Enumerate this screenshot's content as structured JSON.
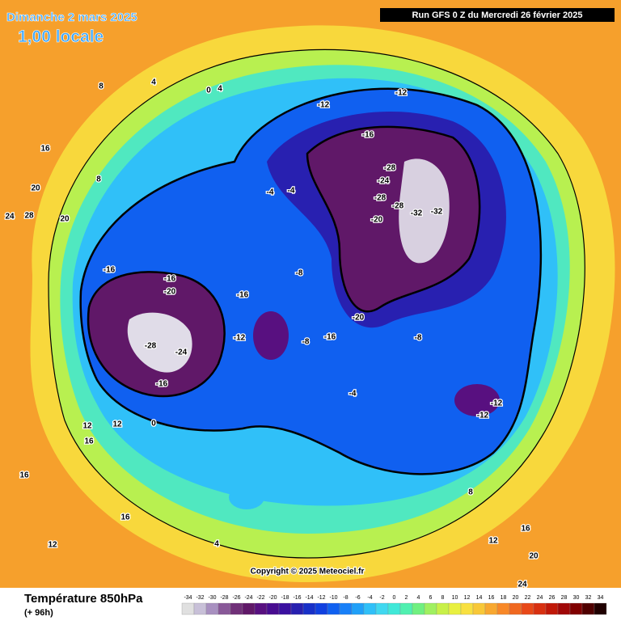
{
  "header": {
    "valid_date": "Dimanche 2 mars 2025",
    "local_time": "1,00 locale",
    "run_info": "Run GFS 0 Z du Mercredi 26 février 2025"
  },
  "map": {
    "copyright": "Copyright © 2025 Meteociel.fr",
    "contour_labels": [
      -32,
      -32,
      -28,
      -28,
      -24,
      -20,
      -28,
      -16,
      -12,
      -12,
      -16,
      -16,
      -20,
      -24,
      -28,
      -16,
      -12,
      -8,
      -20,
      -8,
      -8,
      -16,
      -16,
      -12,
      -12,
      -4,
      -4,
      0,
      4,
      4,
      8,
      8,
      12,
      16,
      16,
      20,
      24,
      28,
      20,
      16,
      12,
      12,
      16,
      20,
      24,
      16,
      12,
      8,
      4,
      0,
      -4
    ]
  },
  "footer": {
    "parameter": "Température 850hPa",
    "lead_time": "(+ 96h)"
  },
  "scale": {
    "values": [
      -34,
      -32,
      -30,
      -28,
      -26,
      -24,
      -22,
      -20,
      -18,
      -16,
      -14,
      -12,
      -10,
      -8,
      -6,
      -4,
      -2,
      0,
      2,
      4,
      6,
      8,
      10,
      12,
      14,
      16,
      18,
      20,
      22,
      24,
      26,
      28,
      30,
      32,
      34
    ],
    "colors": [
      "#e0e0e0",
      "#c8c0d8",
      "#a890c0",
      "#885898",
      "#703078",
      "#601868",
      "#581080",
      "#480c90",
      "#3a10a0",
      "#2820b0",
      "#1830c8",
      "#1040e0",
      "#1060f0",
      "#1880f8",
      "#20a0f8",
      "#30c0f8",
      "#40d8f0",
      "#40e8d8",
      "#50f0b0",
      "#70f080",
      "#a0f060",
      "#c8f048",
      "#e8f040",
      "#f8e040",
      "#f8c838",
      "#f8a830",
      "#f88828",
      "#f06820",
      "#e84818",
      "#d83010",
      "#c01808",
      "#a00808",
      "#800000",
      "#500000",
      "#200000"
    ]
  }
}
